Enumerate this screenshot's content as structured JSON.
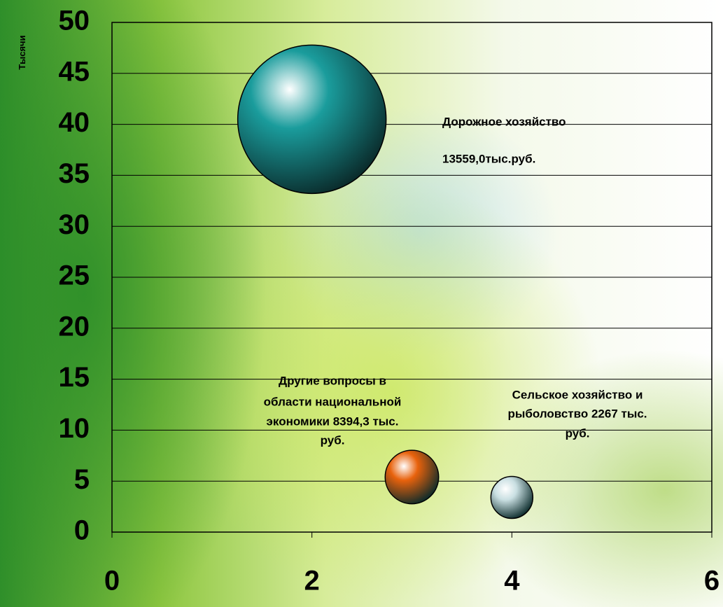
{
  "chart_data": {
    "type": "bubble",
    "y_axis_label": "Тысячи",
    "x": [
      2,
      3,
      4
    ],
    "values": [
      40.5,
      5.4,
      3.4
    ],
    "sizes": [
      100,
      13,
      8
    ],
    "colors": [
      "#1a9c9c",
      "#e8620c",
      "#c9dfe2"
    ],
    "labels": [
      [
        "Дорожное хозяйство",
        "13559,0тыс.руб."
      ],
      [
        "Другие вопросы в",
        "области национальной",
        "экономики 8394,3 тыс.",
        "руб."
      ],
      [
        "Сельское хозяйство и",
        "рыболовство 2267 тыс.",
        "руб."
      ]
    ],
    "xlim": [
      0,
      6
    ],
    "xticks": [
      0,
      2,
      4,
      6
    ],
    "ylim": [
      0,
      50
    ],
    "yticks": [
      0,
      5,
      10,
      15,
      20,
      25,
      30,
      35,
      40,
      45,
      50
    ],
    "grid": true
  }
}
